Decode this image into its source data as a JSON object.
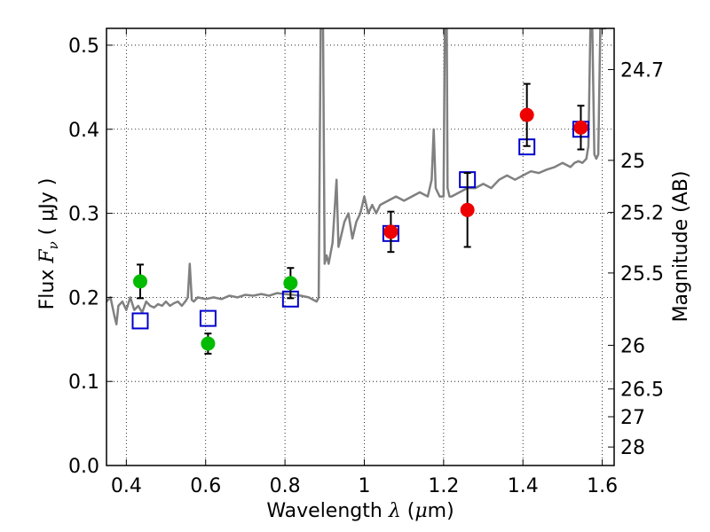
{
  "chart_data": {
    "type": "scatter",
    "xlabel": {
      "text": "Wavelength",
      "symbol": "λ",
      "unit_open": " (",
      "unit": "μ",
      "unit_rest": "m)"
    },
    "ylabel": {
      "text": "Flux ",
      "symbol": "F",
      "sub": "ν",
      "unit": "( μJy )"
    },
    "y2label": "Magnitude (AB)",
    "xlim": [
      0.35,
      1.63
    ],
    "ylim": [
      0.0,
      0.52
    ],
    "grid": true,
    "x_ticks": [
      {
        "value": 0.4,
        "label": "0.4"
      },
      {
        "value": 0.6,
        "label": "0.6"
      },
      {
        "value": 0.8,
        "label": "0.8"
      },
      {
        "value": 1.0,
        "label": "1"
      },
      {
        "value": 1.2,
        "label": "1.2"
      },
      {
        "value": 1.4,
        "label": "1.4"
      },
      {
        "value": 1.6,
        "label": "1.6"
      }
    ],
    "y_ticks": [
      {
        "value": 0.0,
        "label": "0.0"
      },
      {
        "value": 0.1,
        "label": "0.1"
      },
      {
        "value": 0.2,
        "label": "0.2"
      },
      {
        "value": 0.3,
        "label": "0.3"
      },
      {
        "value": 0.4,
        "label": "0.4"
      },
      {
        "value": 0.5,
        "label": "0.5"
      }
    ],
    "mag_ticks": [
      {
        "flux": 0.471,
        "label": "24.7"
      },
      {
        "flux": 0.363,
        "label": "25"
      },
      {
        "flux": 0.301,
        "label": "25.2"
      },
      {
        "flux": 0.229,
        "label": "25.5"
      },
      {
        "flux": 0.143,
        "label": "26"
      },
      {
        "flux": 0.091,
        "label": "26.5"
      },
      {
        "flux": 0.058,
        "label": "27"
      },
      {
        "flux": 0.022,
        "label": "28"
      }
    ],
    "series": [
      {
        "name": "model-spectrum",
        "kind": "line",
        "color": "#808080",
        "x": [
          0.35,
          0.36,
          0.37,
          0.375,
          0.38,
          0.39,
          0.4,
          0.41,
          0.42,
          0.43,
          0.44,
          0.45,
          0.46,
          0.47,
          0.48,
          0.49,
          0.5,
          0.51,
          0.52,
          0.53,
          0.54,
          0.55,
          0.555,
          0.56,
          0.565,
          0.57,
          0.58,
          0.6,
          0.62,
          0.64,
          0.66,
          0.68,
          0.7,
          0.72,
          0.74,
          0.76,
          0.78,
          0.8,
          0.82,
          0.84,
          0.86,
          0.88,
          0.885,
          0.89,
          0.893,
          0.896,
          0.9,
          0.905,
          0.91,
          0.92,
          0.93,
          0.935,
          0.94,
          0.945,
          0.95,
          0.96,
          0.97,
          0.98,
          0.99,
          1.0,
          1.01,
          1.02,
          1.03,
          1.04,
          1.06,
          1.08,
          1.1,
          1.12,
          1.14,
          1.16,
          1.17,
          1.175,
          1.18,
          1.19,
          1.2,
          1.203,
          1.205,
          1.208,
          1.21,
          1.215,
          1.22,
          1.24,
          1.26,
          1.28,
          1.3,
          1.32,
          1.34,
          1.36,
          1.38,
          1.4,
          1.42,
          1.44,
          1.46,
          1.48,
          1.5,
          1.52,
          1.53,
          1.54,
          1.55,
          1.56,
          1.565,
          1.57,
          1.575,
          1.58,
          1.585,
          1.59,
          1.595,
          1.6,
          1.605,
          1.61
        ],
        "y": [
          0.195,
          0.2,
          0.178,
          0.168,
          0.19,
          0.195,
          0.185,
          0.2,
          0.185,
          0.19,
          0.182,
          0.195,
          0.19,
          0.188,
          0.192,
          0.19,
          0.195,
          0.19,
          0.193,
          0.195,
          0.19,
          0.196,
          0.2,
          0.24,
          0.197,
          0.195,
          0.2,
          0.198,
          0.2,
          0.198,
          0.202,
          0.2,
          0.203,
          0.202,
          0.204,
          0.202,
          0.205,
          0.204,
          0.203,
          0.202,
          0.2,
          0.195,
          0.2,
          0.52,
          0.52,
          0.52,
          0.24,
          0.25,
          0.24,
          0.265,
          0.34,
          0.26,
          0.27,
          0.28,
          0.29,
          0.3,
          0.27,
          0.29,
          0.3,
          0.32,
          0.3,
          0.31,
          0.3,
          0.31,
          0.315,
          0.32,
          0.315,
          0.32,
          0.325,
          0.32,
          0.34,
          0.4,
          0.33,
          0.32,
          0.32,
          0.52,
          0.52,
          0.52,
          0.33,
          0.32,
          0.32,
          0.325,
          0.33,
          0.33,
          0.335,
          0.33,
          0.34,
          0.345,
          0.34,
          0.345,
          0.35,
          0.348,
          0.352,
          0.355,
          0.36,
          0.355,
          0.36,
          0.362,
          0.36,
          0.365,
          0.38,
          0.52,
          0.52,
          0.37,
          0.365,
          0.37,
          0.52,
          0.52,
          0.52,
          0.52
        ]
      },
      {
        "name": "model-photometry",
        "kind": "open-square",
        "color": "#0000cc",
        "points": [
          {
            "x": 0.435,
            "y": 0.172
          },
          {
            "x": 0.606,
            "y": 0.175
          },
          {
            "x": 0.814,
            "y": 0.198
          },
          {
            "x": 1.067,
            "y": 0.276
          },
          {
            "x": 1.26,
            "y": 0.34
          },
          {
            "x": 1.41,
            "y": 0.379
          },
          {
            "x": 1.546,
            "y": 0.4
          }
        ]
      },
      {
        "name": "optical-observations",
        "kind": "filled-circle",
        "color": "#00bb00",
        "points": [
          {
            "x": 0.435,
            "y": 0.219,
            "err": 0.02
          },
          {
            "x": 0.606,
            "y": 0.145,
            "err": 0.012
          },
          {
            "x": 0.814,
            "y": 0.217,
            "err": 0.018
          }
        ]
      },
      {
        "name": "nir-observations",
        "kind": "filled-circle",
        "color": "#ee0000",
        "points": [
          {
            "x": 1.067,
            "y": 0.278,
            "err": 0.024
          },
          {
            "x": 1.26,
            "y": 0.304,
            "err": 0.044
          },
          {
            "x": 1.41,
            "y": 0.417,
            "err": 0.037
          },
          {
            "x": 1.546,
            "y": 0.402,
            "err": 0.026
          }
        ]
      }
    ]
  }
}
